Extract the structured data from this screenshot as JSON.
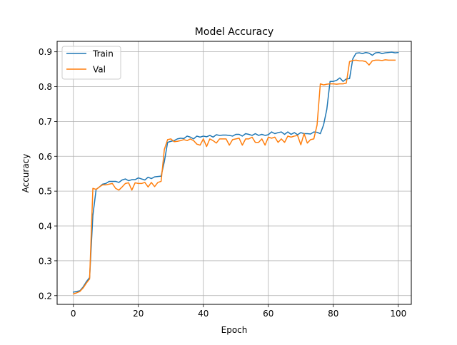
{
  "chart_data": {
    "type": "line",
    "title": "Model Accuracy",
    "xlabel": "Epoch",
    "ylabel": "Accuracy",
    "xlim": [
      -5,
      104
    ],
    "ylim": [
      0.175,
      0.93
    ],
    "xticks": [
      0,
      20,
      40,
      60,
      80,
      100
    ],
    "yticks": [
      0.2,
      0.3,
      0.4,
      0.5,
      0.6,
      0.7,
      0.8,
      0.9
    ],
    "xtick_labels": [
      "0",
      "20",
      "40",
      "60",
      "80",
      "100"
    ],
    "ytick_labels": [
      "0.2",
      "0.3",
      "0.4",
      "0.5",
      "0.6",
      "0.7",
      "0.8",
      "0.9"
    ],
    "grid": true,
    "legend_position": "top-left",
    "series": [
      {
        "name": "Train",
        "color": "#1f77b4",
        "values": [
          0.21,
          0.212,
          0.214,
          0.225,
          0.24,
          0.252,
          0.43,
          0.505,
          0.512,
          0.52,
          0.522,
          0.528,
          0.528,
          0.528,
          0.525,
          0.532,
          0.535,
          0.53,
          0.533,
          0.533,
          0.538,
          0.535,
          0.532,
          0.54,
          0.536,
          0.541,
          0.542,
          0.543,
          0.585,
          0.64,
          0.643,
          0.645,
          0.65,
          0.652,
          0.651,
          0.658,
          0.655,
          0.65,
          0.658,
          0.655,
          0.658,
          0.656,
          0.66,
          0.655,
          0.662,
          0.66,
          0.661,
          0.661,
          0.66,
          0.658,
          0.663,
          0.663,
          0.658,
          0.665,
          0.663,
          0.66,
          0.665,
          0.66,
          0.663,
          0.66,
          0.662,
          0.67,
          0.665,
          0.668,
          0.67,
          0.663,
          0.67,
          0.663,
          0.668,
          0.662,
          0.668,
          0.665,
          0.665,
          0.664,
          0.67,
          0.669,
          0.665,
          0.69,
          0.735,
          0.815,
          0.815,
          0.818,
          0.825,
          0.815,
          0.822,
          0.823,
          0.88,
          0.896,
          0.897,
          0.895,
          0.898,
          0.896,
          0.89,
          0.897,
          0.898,
          0.895,
          0.897,
          0.898,
          0.899,
          0.897,
          0.898
        ]
      },
      {
        "name": "Val",
        "color": "#ff7f0e",
        "values": [
          0.205,
          0.208,
          0.212,
          0.222,
          0.236,
          0.248,
          0.508,
          0.505,
          0.512,
          0.518,
          0.518,
          0.52,
          0.522,
          0.508,
          0.503,
          0.512,
          0.522,
          0.524,
          0.503,
          0.524,
          0.522,
          0.522,
          0.525,
          0.512,
          0.525,
          0.513,
          0.525,
          0.528,
          0.62,
          0.648,
          0.65,
          0.642,
          0.643,
          0.645,
          0.648,
          0.645,
          0.65,
          0.645,
          0.635,
          0.632,
          0.65,
          0.628,
          0.65,
          0.645,
          0.638,
          0.65,
          0.65,
          0.65,
          0.632,
          0.648,
          0.65,
          0.652,
          0.632,
          0.65,
          0.65,
          0.655,
          0.64,
          0.64,
          0.65,
          0.632,
          0.655,
          0.652,
          0.655,
          0.64,
          0.65,
          0.64,
          0.658,
          0.655,
          0.658,
          0.66,
          0.633,
          0.665,
          0.638,
          0.648,
          0.65,
          0.69,
          0.808,
          0.805,
          0.807,
          0.808,
          0.808,
          0.807,
          0.808,
          0.808,
          0.81,
          0.872,
          0.875,
          0.876,
          0.874,
          0.874,
          0.872,
          0.862,
          0.874,
          0.876,
          0.876,
          0.875,
          0.877,
          0.876,
          0.876,
          0.876
        ]
      }
    ]
  }
}
